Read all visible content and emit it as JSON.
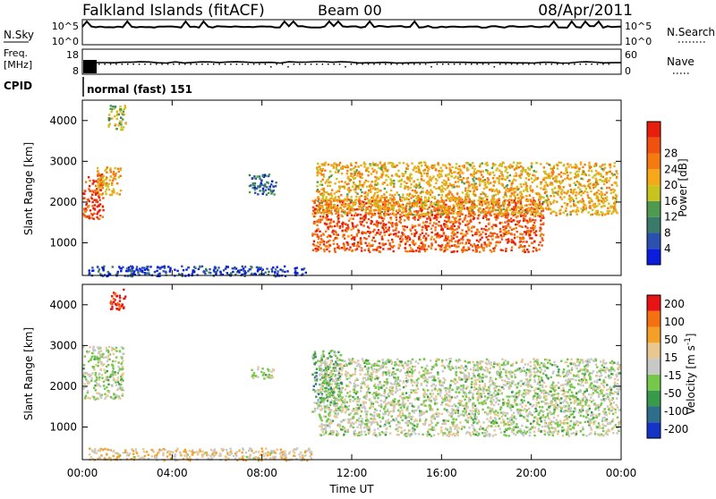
{
  "header": {
    "station": "Falkland Islands (fitACF)",
    "beam": "Beam 00",
    "date": "08/Apr/2011"
  },
  "strips": {
    "nsky_label": "N.Sky",
    "nsky_ticks": [
      "10^5",
      "10^0"
    ],
    "nsearch_label": "N.Search",
    "nsearch_ticks": [
      "10^5",
      "10^0"
    ],
    "freq_label_line1": "Freq.",
    "freq_label_line2": "[MHz]",
    "freq_ticks": [
      "18",
      "8"
    ],
    "nave_label": "Nave",
    "nave_ticks": [
      "60",
      "0"
    ],
    "cpid_label": "CPID",
    "cpid_value": "normal (fast) 151"
  },
  "chart_data": [
    {
      "type": "heatmap",
      "panel": "power",
      "ylabel": "Slant Range [km]",
      "xlabel": "Time UT",
      "ylim": [
        200,
        4500
      ],
      "yticks": [
        "1000",
        "2000",
        "3000",
        "4000"
      ],
      "xticks": [
        "00:00",
        "04:00",
        "08:00",
        "12:00",
        "16:00",
        "20:00",
        "00:00"
      ],
      "colorbar": {
        "label": "Power [dB]",
        "ticks": [
          "4",
          "8",
          "12",
          "16",
          "20",
          "24",
          "28"
        ],
        "colors": [
          "#0a1cdc",
          "#2c50b0",
          "#3a7a6a",
          "#4f9a4f",
          "#c9c320",
          "#f6a818",
          "#f57a10",
          "#f05010",
          "#e81e0a"
        ]
      },
      "regions": [
        {
          "t0": 0.0,
          "t1": 0.9,
          "r0": 1600,
          "r1": 2700,
          "level": 0.88
        },
        {
          "t0": 0.6,
          "t1": 1.7,
          "r0": 2200,
          "r1": 2900,
          "level": 0.62
        },
        {
          "t0": 1.1,
          "t1": 1.9,
          "r0": 3800,
          "r1": 4400,
          "level": 0.45
        },
        {
          "t0": 7.4,
          "t1": 8.6,
          "r0": 2200,
          "r1": 2700,
          "level": 0.22
        },
        {
          "t0": 10.2,
          "t1": 20.5,
          "r0": 800,
          "r1": 2100,
          "level": 0.82
        },
        {
          "t0": 10.4,
          "t1": 23.8,
          "r0": 1700,
          "r1": 3000,
          "level": 0.6
        },
        {
          "t0": 0.2,
          "t1": 10.0,
          "r0": 200,
          "r1": 450,
          "level": 0.12
        }
      ]
    },
    {
      "type": "heatmap",
      "panel": "velocity",
      "ylabel": "Slant Range [km]",
      "xlabel": "Time UT",
      "ylim": [
        200,
        4500
      ],
      "yticks": [
        "1000",
        "2000",
        "3000",
        "4000"
      ],
      "xticks": [
        "00:00",
        "04:00",
        "08:00",
        "12:00",
        "16:00",
        "20:00",
        "00:00"
      ],
      "colorbar": {
        "label": "Velocity [m s^-1]",
        "ticks": [
          "200",
          "100",
          "50",
          "15",
          "-15",
          "-50",
          "-100",
          "-200"
        ],
        "colors": [
          "#1434c8",
          "#2c6e8c",
          "#3a9a4c",
          "#76c84a",
          "#c8c8c8",
          "#e8c890",
          "#f4a028",
          "#f47010",
          "#e81414"
        ]
      },
      "regions": [
        {
          "t0": 1.2,
          "t1": 1.9,
          "r0": 3900,
          "r1": 4400,
          "level": 0.95
        },
        {
          "t0": 0.0,
          "t1": 1.8,
          "r0": 1700,
          "r1": 3000,
          "level": 0.48
        },
        {
          "t0": 7.5,
          "t1": 8.5,
          "r0": 2200,
          "r1": 2500,
          "level": 0.48
        },
        {
          "t0": 10.2,
          "t1": 11.5,
          "r0": 1400,
          "r1": 2900,
          "level": 0.36
        },
        {
          "t0": 10.5,
          "t1": 23.9,
          "r0": 800,
          "r1": 2700,
          "level": 0.48
        },
        {
          "t0": 0.2,
          "t1": 10.2,
          "r0": 200,
          "r1": 500,
          "level": 0.6
        }
      ]
    }
  ]
}
